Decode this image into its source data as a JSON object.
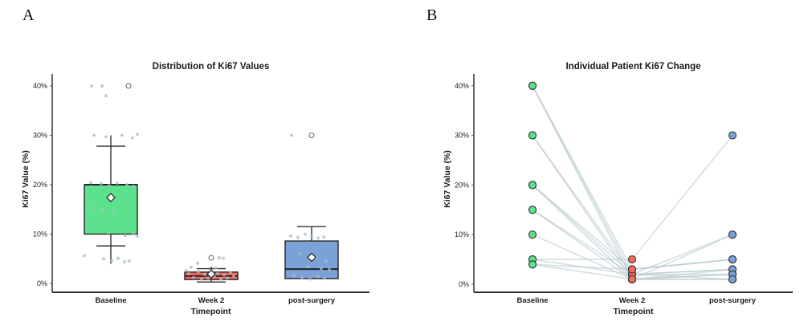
{
  "page": {
    "background": "#ffffff"
  },
  "panel_a": {
    "letter": "A"
  },
  "panel_b": {
    "letter": "B"
  },
  "style": {
    "timepoint_colors": [
      "#5CE28C",
      "#F8695E",
      "#7BA2D8"
    ],
    "box_edge_color": "#2E2E2E",
    "whisker_color": "#333333",
    "median_color": "#222222",
    "mean_marker_fill": "#FFFFFF",
    "mean_marker_edge": "#222222",
    "jitter_dot_color": "#A9BDC8",
    "outlier_circle_edge": "#666666",
    "spaghetti_line_color": "#B9C9CF",
    "dot_edge_color": "#333333",
    "spine_color": "#555555",
    "axis_color": "#111111"
  },
  "chart_data": [
    {
      "type": "box",
      "panel": "A",
      "title": "Distribution of Ki67 Values",
      "xlabel": "Timepoint",
      "ylabel": "Ki67 Value (%)",
      "categories": [
        "Baseline",
        "Week 2",
        "post-surgery"
      ],
      "y_ticks": [
        {
          "label": "40%",
          "value": 40
        },
        {
          "label": "30%",
          "value": 30
        },
        {
          "label": "20%",
          "value": 20
        },
        {
          "label": "10%",
          "value": 10
        },
        {
          "label": "0%",
          "value": 0
        }
      ],
      "ylim": [
        0,
        42
      ],
      "grid": false,
      "groups": [
        {
          "name": "Baseline",
          "color": "#5CE28C",
          "q1": 10,
          "q3": 20,
          "median": 20,
          "mean": 17.4,
          "whisker_line": [
            4,
            30
          ],
          "cap_low": 7.6,
          "cap_high": 27.8,
          "outlier_circles": [
            {
              "dx": 22,
              "value": 40
            }
          ],
          "jitter": [
            [
              -24,
              40
            ],
            [
              -11,
              40
            ],
            [
              -6,
              38
            ],
            [
              -21,
              30
            ],
            [
              -6,
              29.7
            ],
            [
              14,
              30
            ],
            [
              27,
              29.5
            ],
            [
              33,
              30.2
            ],
            [
              -25,
              20.4
            ],
            [
              -12,
              20.2
            ],
            [
              -2,
              19.8
            ],
            [
              8,
              20.3
            ],
            [
              20,
              20
            ],
            [
              28,
              19.7
            ],
            [
              -20,
              15.2
            ],
            [
              -10,
              15
            ],
            [
              3,
              14.6
            ],
            [
              -3,
              10.3
            ],
            [
              18,
              9.7
            ],
            [
              28,
              10
            ],
            [
              33,
              9.6
            ],
            [
              -33,
              5.6
            ],
            [
              -9,
              5
            ],
            [
              1,
              4.6
            ],
            [
              9,
              5.1
            ],
            [
              17,
              4.4
            ],
            [
              23,
              4.6
            ]
          ]
        },
        {
          "name": "Week 2",
          "color": "#F8695E",
          "q1": 0.8,
          "q3": 2.3,
          "median": 1.5,
          "mean": 1.9,
          "whisker_line": [
            0.2,
            3.4
          ],
          "cap_low": 0.3,
          "cap_high": 3.0,
          "outlier_circles": [
            {
              "dx": 0,
              "value": 5.2
            }
          ],
          "jitter": [
            [
              -28,
              2
            ],
            [
              -22,
              1.2
            ],
            [
              -16,
              2.4
            ],
            [
              -12,
              0.9
            ],
            [
              -8,
              1.8
            ],
            [
              -4,
              1.1
            ],
            [
              0,
              2.2
            ],
            [
              4,
              1.4
            ],
            [
              8,
              2
            ],
            [
              12,
              0.9
            ],
            [
              16,
              1.7
            ],
            [
              20,
              1.1
            ],
            [
              24,
              2.2
            ],
            [
              28,
              1.5
            ],
            [
              -25,
              3.3
            ],
            [
              6,
              3.1
            ],
            [
              -31,
              2.6
            ],
            [
              -17,
              4.1
            ],
            [
              10,
              5.2
            ],
            [
              15,
              5.1
            ]
          ]
        },
        {
          "name": "post-surgery",
          "color": "#7BA2D8",
          "q1": 1.0,
          "q3": 8.6,
          "median": 2.9,
          "mean": 5.3,
          "whisker_line": [
            8.6,
            11.5
          ],
          "cap_low": null,
          "cap_high": 11.5,
          "outlier_circles": [
            {
              "dx": 0,
              "value": 30
            }
          ],
          "jitter": [
            [
              -26,
              9.6
            ],
            [
              -17,
              9.3
            ],
            [
              -8,
              10
            ],
            [
              0,
              9.5
            ],
            [
              8,
              9.2
            ],
            [
              15,
              9.4
            ],
            [
              -15,
              6
            ],
            [
              5,
              5.2
            ],
            [
              18,
              4.6
            ],
            [
              -5,
              3.4
            ],
            [
              12,
              3
            ],
            [
              22,
              2.8
            ],
            [
              -22,
              1.6
            ],
            [
              -12,
              1.2
            ],
            [
              -2,
              0.9
            ],
            [
              8,
              1.4
            ],
            [
              16,
              1
            ],
            [
              -25,
              30
            ]
          ]
        }
      ]
    },
    {
      "type": "line",
      "panel": "B",
      "title": "Individual Patient Ki67 Change",
      "xlabel": "Timepoint",
      "ylabel": "Ki67 Value (%)",
      "categories": [
        "Baseline",
        "Week 2",
        "post-surgery"
      ],
      "y_ticks": [
        {
          "label": "40%",
          "value": 40
        },
        {
          "label": "30%",
          "value": 30
        },
        {
          "label": "20%",
          "value": 20
        },
        {
          "label": "10%",
          "value": 10
        },
        {
          "label": "0%",
          "value": 0
        }
      ],
      "ylim": [
        0,
        42
      ],
      "grid": false,
      "legend": "none",
      "patients": [
        [
          40,
          2,
          3
        ],
        [
          40,
          1,
          2
        ],
        [
          40,
          3,
          5
        ],
        [
          30,
          2,
          1
        ],
        [
          30,
          1,
          3
        ],
        [
          20,
          3,
          5
        ],
        [
          20,
          2,
          2
        ],
        [
          20,
          1,
          1
        ],
        [
          15,
          2,
          3
        ],
        [
          15,
          1,
          2
        ],
        [
          10,
          1,
          1
        ],
        [
          5,
          5,
          30
        ],
        [
          5,
          2,
          10
        ],
        [
          4,
          1,
          10
        ],
        [
          4,
          3,
          5
        ]
      ]
    }
  ]
}
